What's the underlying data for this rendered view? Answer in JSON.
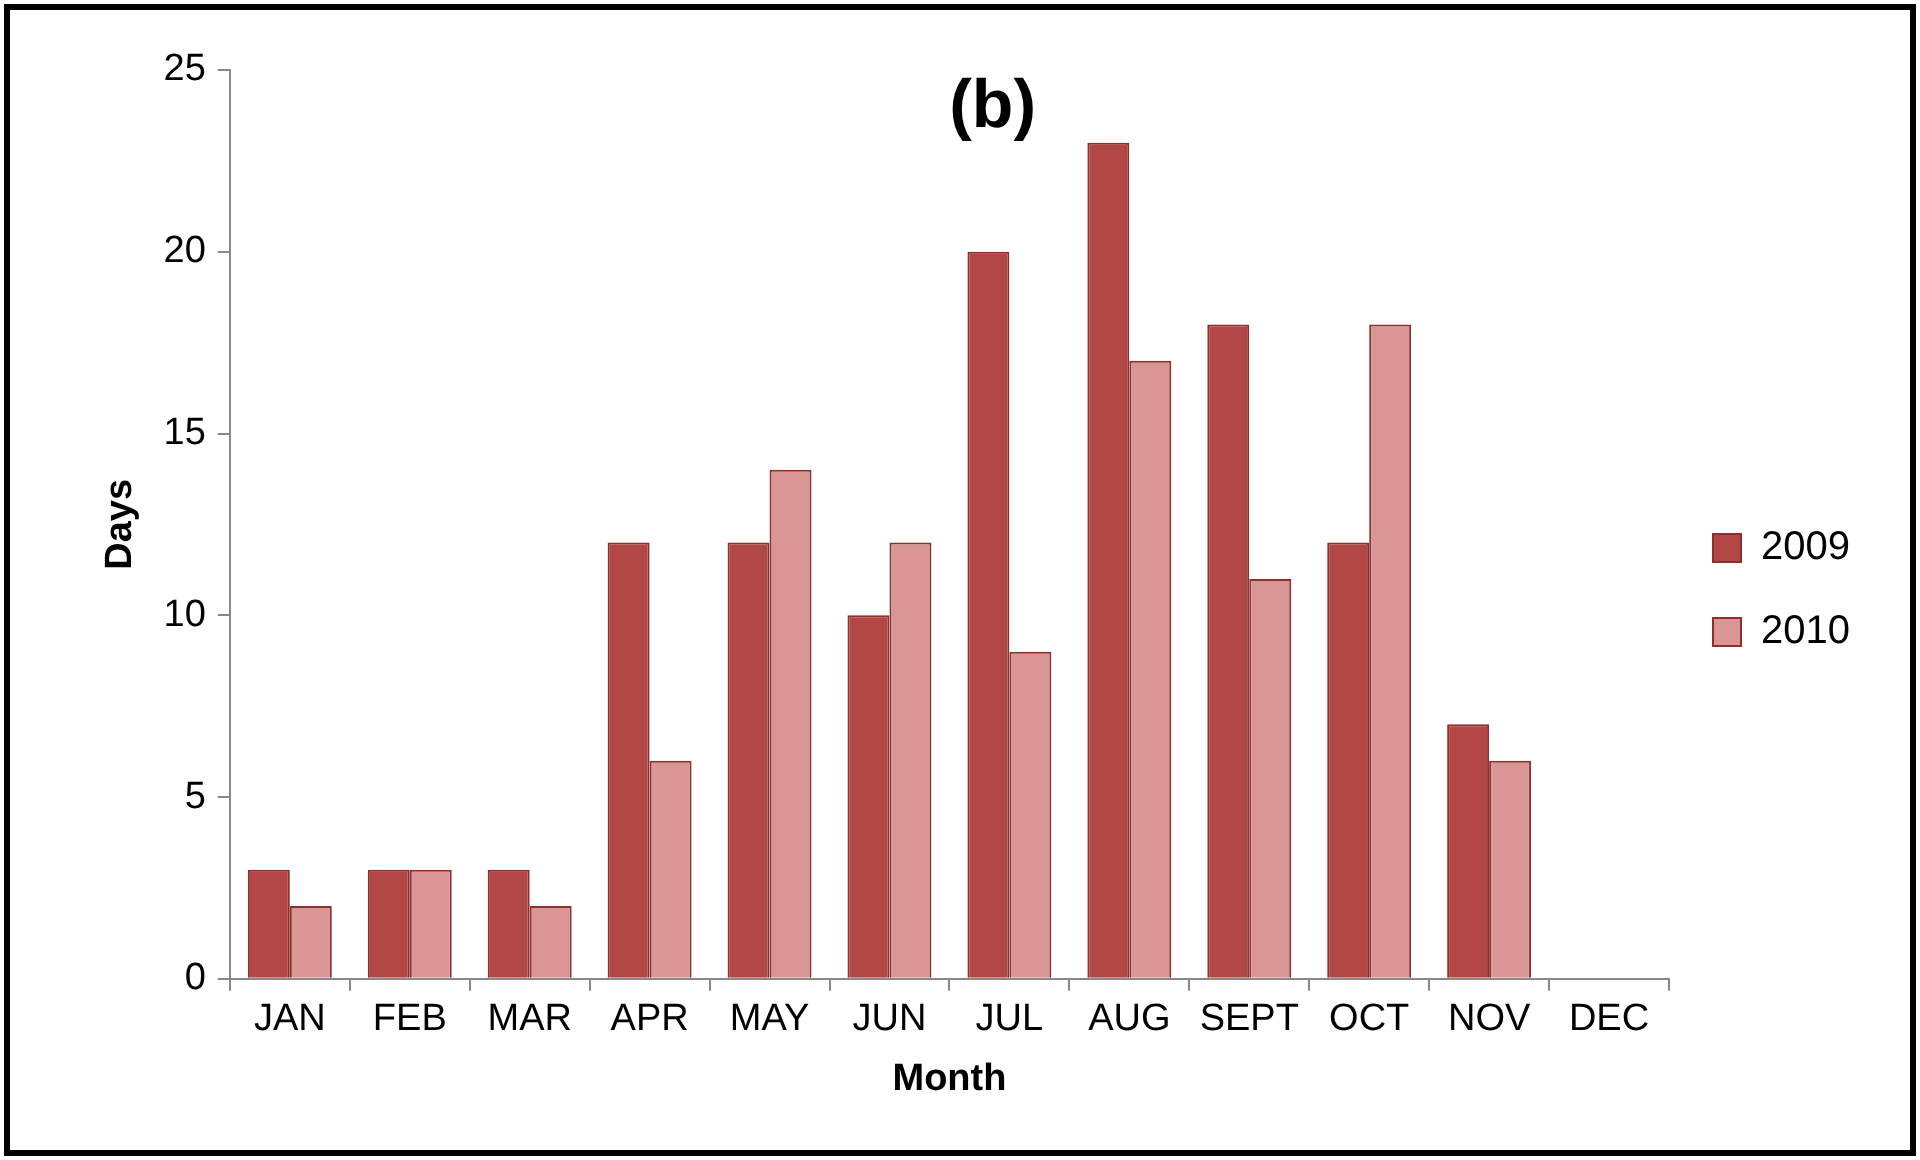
{
  "chart_data": {
    "type": "bar",
    "title": "(b)",
    "xlabel": "Month",
    "ylabel": "Days",
    "categories": [
      "JAN",
      "FEB",
      "MAR",
      "APR",
      "MAY",
      "JUN",
      "JUL",
      "AUG",
      "SEPT",
      "OCT",
      "NOV",
      "DEC"
    ],
    "series": [
      {
        "name": "2009",
        "color": "#b34745",
        "values": [
          3,
          3,
          3,
          12,
          12,
          10,
          20,
          23,
          18,
          12,
          7,
          null
        ]
      },
      {
        "name": "2010",
        "color": "#d99694",
        "values": [
          2,
          3,
          2,
          6,
          14,
          12,
          9,
          17,
          11,
          18,
          6,
          null
        ]
      }
    ],
    "ylim": [
      0,
      25
    ],
    "yticks": [
      0,
      5,
      10,
      15,
      20,
      25
    ],
    "grid": false,
    "legend": "right"
  }
}
